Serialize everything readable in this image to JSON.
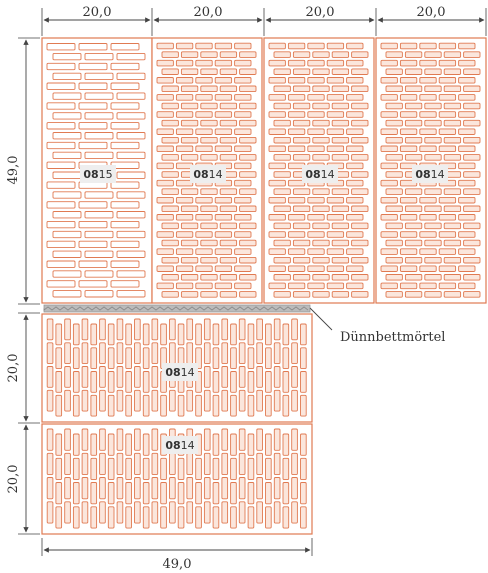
{
  "dimensions": {
    "top": [
      "20,0",
      "20,0",
      "20,0",
      "20,0"
    ],
    "left_upper": "49,0",
    "left_lower_a": "20,0",
    "left_lower_b": "20,0",
    "bottom": "49,0"
  },
  "blocks": {
    "upper": [
      {
        "code_bold": "08",
        "code_rest": "15"
      },
      {
        "code_bold": "08",
        "code_rest": "14"
      },
      {
        "code_bold": "08",
        "code_rest": "14"
      },
      {
        "code_bold": "08",
        "code_rest": "14"
      }
    ],
    "lower": [
      {
        "code_bold": "08",
        "code_rest": "14"
      },
      {
        "code_bold": "08",
        "code_rest": "14"
      }
    ]
  },
  "mortar_label": "Dünnbettmörtel",
  "colors": {
    "brick_stroke": "#e07a52",
    "brick_fill": "#fbe6dc",
    "dim_line": "#444444",
    "mortar": "#999999",
    "code_bg": "#eeeeee"
  }
}
